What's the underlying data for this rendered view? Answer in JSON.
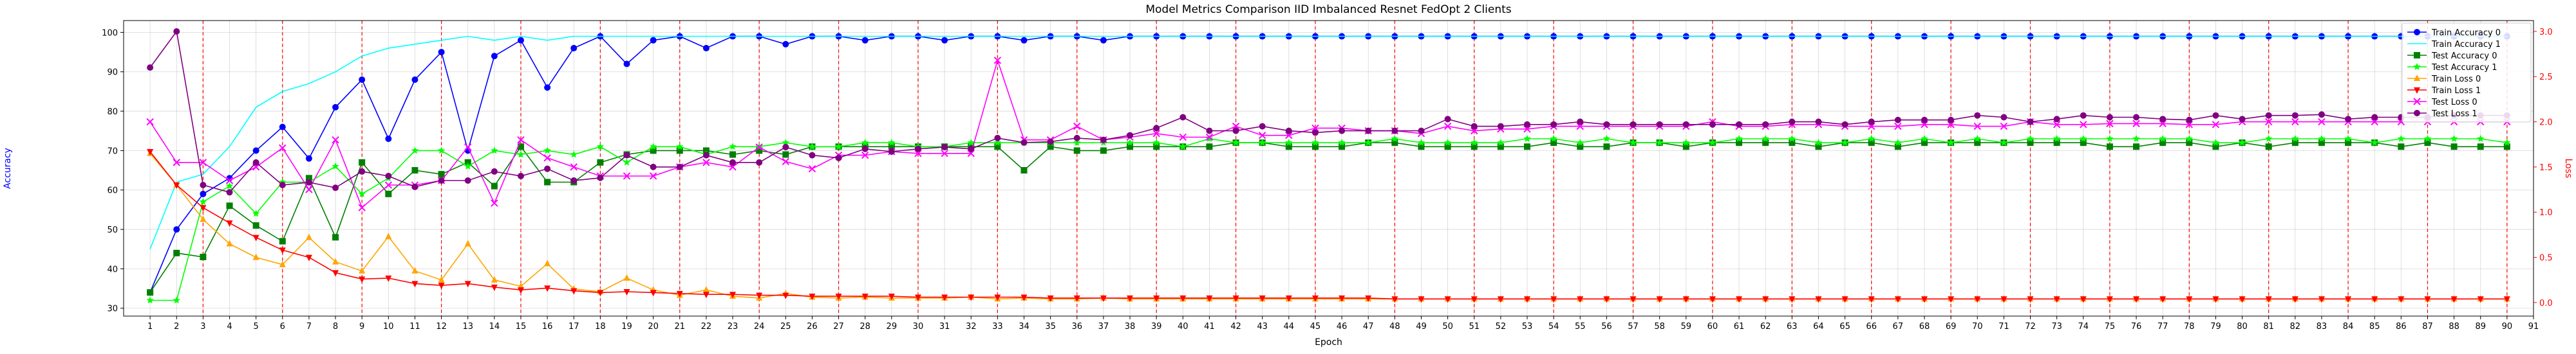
{
  "chart_data": {
    "type": "line",
    "title": "Model Metrics Comparison IID Imbalanced Resnet FedOpt 2 Clients",
    "xlabel": "Epoch",
    "ylabel_left": "Accuracy",
    "ylabel_right": "Loss",
    "xlim": [
      0,
      91
    ],
    "xticks": [
      1,
      2,
      3,
      4,
      5,
      6,
      7,
      8,
      9,
      10,
      11,
      12,
      13,
      14,
      15,
      16,
      17,
      18,
      19,
      20,
      21,
      22,
      23,
      24,
      25,
      26,
      27,
      28,
      29,
      30,
      31,
      32,
      33,
      34,
      35,
      36,
      37,
      38,
      39,
      40,
      41,
      42,
      43,
      44,
      45,
      46,
      47,
      48,
      49,
      50,
      51,
      52,
      53,
      54,
      55,
      56,
      57,
      58,
      59,
      60,
      61,
      62,
      63,
      64,
      65,
      66,
      67,
      68,
      69,
      70,
      71,
      72,
      73,
      74,
      75,
      76,
      77,
      78,
      79,
      80,
      81,
      82,
      83,
      84,
      85,
      86,
      87,
      88,
      89,
      90,
      91
    ],
    "ylim_left": [
      28,
      103
    ],
    "yticks_left": [
      30,
      40,
      50,
      60,
      70,
      80,
      90,
      100
    ],
    "ylim_right": [
      -0.15,
      3.12
    ],
    "yticks_right": [
      0.0,
      0.5,
      1.0,
      1.5,
      2.0,
      2.5,
      3.0
    ],
    "ylabel_left_color": "#0000ff",
    "ylabel_right_color": "#ff0000",
    "vlines": [
      3,
      6,
      9,
      12,
      15,
      18,
      21,
      24,
      27,
      30,
      33,
      36,
      39,
      42,
      45,
      48,
      51,
      54,
      57,
      60,
      63,
      66,
      69,
      72,
      75,
      78,
      81,
      84,
      87,
      90
    ],
    "vline_color": "#ff0000",
    "grid": true,
    "legend_position": "top-right",
    "series": [
      {
        "name": "Train Accuracy 0",
        "axis": "left",
        "color": "#0000ff",
        "marker": "circle",
        "values": [
          34,
          50,
          59,
          63,
          70,
          76,
          68,
          81,
          88,
          73,
          88,
          95,
          70,
          94,
          98,
          86,
          96,
          99,
          92,
          98,
          99,
          96,
          99,
          99,
          97,
          99,
          99,
          98,
          99,
          99,
          98,
          99,
          99,
          98,
          99,
          99,
          98,
          99,
          99,
          99,
          99,
          99,
          99,
          99,
          99,
          99,
          99,
          99,
          99,
          99,
          99,
          99,
          99,
          99,
          99,
          99,
          99,
          99,
          99,
          99,
          99,
          99,
          99,
          99,
          99,
          99,
          99,
          99,
          99,
          99,
          99,
          99,
          99,
          99,
          99,
          99,
          99,
          99,
          99,
          99,
          99,
          99,
          99,
          99,
          99,
          99,
          99,
          99,
          99,
          99
        ]
      },
      {
        "name": "Train Accuracy 1",
        "axis": "left",
        "color": "#00ffff",
        "marker": "none",
        "values": [
          45,
          62,
          64,
          71,
          81,
          85,
          87,
          90,
          94,
          96,
          97,
          98,
          99,
          98,
          99,
          98,
          99,
          99,
          99,
          99,
          99,
          99,
          99,
          99,
          99,
          99,
          99,
          99,
          99,
          99,
          99,
          99,
          99,
          99,
          99,
          99,
          99,
          99,
          99,
          99,
          99,
          99,
          99,
          99,
          99,
          99,
          99,
          99,
          99,
          99,
          99,
          99,
          99,
          99,
          99,
          99,
          99,
          99,
          99,
          99,
          99,
          99,
          99,
          99,
          99,
          99,
          99,
          99,
          99,
          99,
          99,
          99,
          99,
          99,
          99,
          99,
          99,
          99,
          99,
          99,
          99,
          99,
          99,
          99,
          99,
          99,
          99,
          99,
          99,
          99
        ]
      },
      {
        "name": "Test Accuracy 0",
        "axis": "left",
        "color": "#008000",
        "marker": "square",
        "values": [
          34,
          44,
          43,
          56,
          51,
          47,
          63,
          48,
          67,
          59,
          65,
          64,
          67,
          61,
          71,
          62,
          62,
          67,
          69,
          70,
          70,
          70,
          69,
          70,
          69,
          71,
          71,
          71,
          71,
          71,
          71,
          71,
          71,
          65,
          71,
          70,
          70,
          71,
          71,
          71,
          71,
          72,
          72,
          71,
          71,
          71,
          72,
          72,
          71,
          71,
          71,
          71,
          71,
          72,
          71,
          71,
          72,
          72,
          71,
          72,
          72,
          72,
          72,
          71,
          72,
          72,
          71,
          72,
          72,
          72,
          72,
          72,
          72,
          72,
          71,
          71,
          72,
          72,
          71,
          72,
          71,
          72,
          72,
          72,
          72,
          71,
          72,
          71,
          71,
          71
        ]
      },
      {
        "name": "Test Accuracy 1",
        "axis": "left",
        "color": "#00ff00",
        "marker": "star",
        "values": [
          32,
          32,
          57,
          61,
          54,
          62,
          62,
          66,
          59,
          63,
          70,
          70,
          66,
          70,
          69,
          70,
          69,
          71,
          67,
          71,
          71,
          69,
          71,
          71,
          72,
          71,
          71,
          72,
          72,
          71,
          71,
          72,
          72,
          72,
          72,
          72,
          72,
          72,
          72,
          71,
          73,
          72,
          72,
          72,
          72,
          72,
          72,
          73,
          72,
          72,
          72,
          72,
          73,
          73,
          72,
          73,
          72,
          72,
          72,
          72,
          73,
          73,
          73,
          72,
          72,
          73,
          72,
          73,
          72,
          73,
          72,
          73,
          73,
          73,
          73,
          73,
          73,
          73,
          72,
          72,
          73,
          73,
          73,
          73,
          72,
          73,
          73,
          73,
          73,
          72
        ]
      },
      {
        "name": "Train Loss 0",
        "axis": "right",
        "color": "#ffa500",
        "marker": "triangle-up",
        "values": [
          1.65,
          1.3,
          0.92,
          0.65,
          0.5,
          0.42,
          0.72,
          0.45,
          0.35,
          0.73,
          0.35,
          0.25,
          0.65,
          0.25,
          0.18,
          0.43,
          0.15,
          0.12,
          0.27,
          0.14,
          0.08,
          0.14,
          0.07,
          0.05,
          0.1,
          0.06,
          0.05,
          0.06,
          0.05,
          0.05,
          0.05,
          0.06,
          0.04,
          0.05,
          0.04,
          0.04,
          0.05,
          0.04,
          0.04,
          0.04,
          0.04,
          0.04,
          0.04,
          0.04,
          0.04,
          0.04,
          0.04,
          0.04,
          0.04,
          0.04,
          0.04,
          0.04,
          0.04,
          0.04,
          0.04,
          0.04,
          0.04,
          0.04,
          0.04,
          0.04,
          0.04,
          0.04,
          0.04,
          0.04,
          0.04,
          0.04,
          0.04,
          0.04,
          0.04,
          0.04,
          0.04,
          0.04,
          0.04,
          0.04,
          0.04,
          0.04,
          0.04,
          0.04,
          0.04,
          0.04,
          0.04,
          0.04,
          0.04,
          0.04,
          0.04,
          0.04,
          0.04,
          0.04,
          0.04,
          0.04
        ]
      },
      {
        "name": "Train Loss 1",
        "axis": "right",
        "color": "#ff0000",
        "marker": "triangle-down",
        "values": [
          1.67,
          1.3,
          1.05,
          0.88,
          0.72,
          0.58,
          0.5,
          0.33,
          0.26,
          0.27,
          0.21,
          0.19,
          0.21,
          0.17,
          0.14,
          0.16,
          0.13,
          0.11,
          0.12,
          0.11,
          0.1,
          0.09,
          0.09,
          0.08,
          0.08,
          0.07,
          0.07,
          0.07,
          0.07,
          0.06,
          0.06,
          0.06,
          0.06,
          0.06,
          0.05,
          0.05,
          0.05,
          0.05,
          0.05,
          0.05,
          0.05,
          0.05,
          0.05,
          0.05,
          0.05,
          0.05,
          0.05,
          0.04,
          0.04,
          0.04,
          0.04,
          0.04,
          0.04,
          0.04,
          0.04,
          0.04,
          0.04,
          0.04,
          0.04,
          0.04,
          0.04,
          0.04,
          0.04,
          0.04,
          0.04,
          0.04,
          0.04,
          0.04,
          0.04,
          0.04,
          0.04,
          0.04,
          0.04,
          0.04,
          0.04,
          0.04,
          0.04,
          0.04,
          0.04,
          0.04,
          0.04,
          0.04,
          0.04,
          0.04,
          0.04,
          0.04,
          0.04,
          0.04,
          0.04,
          0.04
        ]
      },
      {
        "name": "Test Loss 0",
        "axis": "right",
        "color": "#ff00ff",
        "marker": "x",
        "values": [
          2.0,
          1.55,
          1.55,
          1.35,
          1.5,
          1.71,
          1.25,
          1.8,
          1.05,
          1.3,
          1.3,
          1.35,
          1.72,
          1.1,
          1.8,
          1.6,
          1.5,
          1.4,
          1.4,
          1.4,
          1.5,
          1.55,
          1.5,
          1.72,
          1.56,
          1.48,
          1.63,
          1.63,
          1.67,
          1.65,
          1.65,
          1.65,
          2.68,
          1.8,
          1.8,
          1.95,
          1.8,
          1.83,
          1.87,
          1.83,
          1.83,
          1.95,
          1.85,
          1.85,
          1.93,
          1.93,
          1.9,
          1.9,
          1.87,
          1.95,
          1.9,
          1.92,
          1.92,
          1.95,
          1.95,
          1.95,
          1.95,
          1.95,
          1.95,
          2.0,
          1.95,
          1.95,
          1.97,
          1.97,
          1.95,
          1.95,
          1.95,
          1.97,
          1.97,
          1.95,
          1.95,
          2.0,
          1.97,
          1.97,
          1.98,
          1.98,
          1.98,
          1.97,
          1.97,
          2.0,
          2.0,
          2.0,
          2.0,
          2.0,
          2.0,
          2.0,
          2.0,
          2.0,
          2.0,
          2.0
        ]
      },
      {
        "name": "Test Loss 1",
        "axis": "right",
        "color": "#800080",
        "marker": "circle",
        "values": [
          2.6,
          3.0,
          1.3,
          1.22,
          1.55,
          1.3,
          1.33,
          1.27,
          1.45,
          1.4,
          1.28,
          1.35,
          1.35,
          1.45,
          1.4,
          1.48,
          1.35,
          1.38,
          1.63,
          1.5,
          1.5,
          1.63,
          1.55,
          1.55,
          1.72,
          1.63,
          1.6,
          1.7,
          1.67,
          1.7,
          1.72,
          1.7,
          1.82,
          1.77,
          1.78,
          1.82,
          1.8,
          1.85,
          1.93,
          2.05,
          1.9,
          1.9,
          1.95,
          1.9,
          1.88,
          1.9,
          1.9,
          1.9,
          1.9,
          2.03,
          1.95,
          1.95,
          1.97,
          1.97,
          2.0,
          1.97,
          1.97,
          1.97,
          1.97,
          1.97,
          1.97,
          1.97,
          2.0,
          2.0,
          1.97,
          2.0,
          2.02,
          2.02,
          2.02,
          2.07,
          2.05,
          2.0,
          2.03,
          2.07,
          2.05,
          2.05,
          2.03,
          2.02,
          2.07,
          2.03,
          2.07,
          2.07,
          2.08,
          2.03,
          2.05,
          2.05,
          2.05,
          2.07,
          2.07,
          2.07
        ]
      }
    ]
  }
}
